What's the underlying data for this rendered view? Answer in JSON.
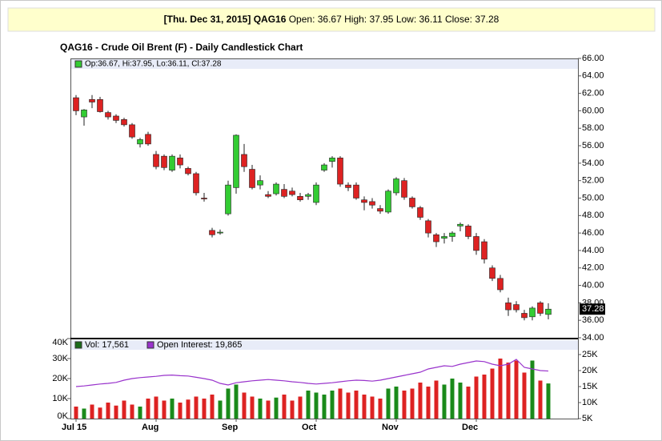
{
  "chart_data": [
    {
      "type": "candlestick",
      "header": {
        "date": "[Thu. Dec 31, 2015]",
        "symbol": "QAG16",
        "quote": "Open: 36.67 High: 37.95 Low: 36.11 Close: 37.28"
      },
      "title": "QAG16 - Crude Oil Brent (F) - Daily Candlestick Chart",
      "legend": "Op:36.67, Hi:37.95, Lo:36.11, Cl:37.28",
      "last_label": "37.28",
      "up_color": "#33cc33",
      "down_color": "#dd2222",
      "open": [
        61.5,
        59.3,
        61.3,
        61.3,
        59.8,
        59.4,
        59.0,
        58.4,
        56.2,
        57.3,
        55.0,
        54.8,
        53.2,
        54.6,
        53.4,
        52.8,
        50.0,
        46.3,
        46.0,
        48.2,
        51.2,
        55.0,
        53.3,
        51.5,
        50.4,
        50.5,
        51.0,
        50.8,
        50.2,
        50.2,
        49.5,
        53.2,
        54.2,
        54.6,
        51.5,
        51.5,
        49.8,
        49.6,
        48.8,
        48.4,
        50.6,
        52.0,
        50.0,
        48.9,
        47.4,
        45.8,
        45.4,
        45.6,
        46.8,
        46.8,
        45.6,
        45.0,
        42.0,
        40.8,
        38.0,
        37.8,
        36.8,
        36.4,
        38.0,
        36.67
      ],
      "high": [
        61.8,
        60.2,
        61.8,
        61.6,
        60.0,
        59.6,
        59.2,
        58.6,
        56.9,
        57.6,
        55.4,
        55.0,
        55.0,
        55.0,
        53.6,
        53.0,
        50.6,
        46.6,
        46.4,
        52.0,
        57.3,
        56.2,
        53.8,
        52.6,
        50.8,
        51.8,
        51.6,
        51.2,
        50.6,
        50.6,
        51.8,
        54.0,
        54.8,
        54.8,
        51.8,
        51.8,
        50.2,
        50.0,
        49.2,
        51.0,
        52.4,
        52.3,
        50.2,
        49.1,
        47.6,
        46.0,
        46.0,
        46.2,
        47.2,
        47.0,
        46.0,
        45.3,
        42.3,
        41.2,
        38.6,
        38.2,
        37.2,
        37.6,
        38.2,
        37.95
      ],
      "low": [
        59.5,
        58.3,
        60.3,
        59.8,
        59.0,
        58.6,
        58.2,
        56.8,
        55.8,
        56.0,
        53.3,
        53.2,
        53.0,
        53.4,
        52.6,
        50.3,
        49.6,
        45.5,
        45.8,
        48.0,
        50.5,
        53.0,
        51.0,
        51.0,
        50.0,
        50.3,
        50.0,
        50.2,
        49.6,
        49.8,
        49.2,
        53.0,
        53.5,
        51.3,
        50.8,
        49.8,
        48.6,
        48.8,
        48.2,
        48.2,
        50.3,
        49.8,
        48.8,
        47.5,
        45.5,
        44.4,
        44.8,
        45.0,
        46.2,
        45.3,
        43.5,
        42.5,
        40.5,
        39.2,
        36.5,
        36.9,
        36.0,
        36.0,
        36.5,
        36.11
      ],
      "close": [
        60.0,
        60.1,
        61.0,
        59.9,
        59.3,
        58.9,
        58.4,
        57.0,
        56.7,
        56.2,
        53.6,
        53.5,
        54.8,
        53.8,
        52.8,
        50.6,
        49.9,
        45.8,
        46.1,
        51.5,
        57.2,
        53.6,
        51.2,
        52.0,
        50.2,
        51.6,
        50.2,
        50.4,
        49.8,
        50.4,
        51.5,
        53.8,
        54.6,
        51.6,
        51.2,
        50.0,
        49.5,
        49.2,
        48.5,
        50.8,
        52.2,
        50.1,
        49.0,
        47.8,
        46.0,
        45.0,
        45.6,
        46.0,
        47.0,
        45.6,
        44.0,
        43.0,
        40.8,
        39.5,
        37.2,
        37.2,
        36.3,
        37.4,
        36.8,
        37.28
      ],
      "ylim": [
        34,
        66
      ],
      "yticks": [
        {
          "value": 34,
          "label": "34.00"
        },
        {
          "value": 36,
          "label": "36.00"
        },
        {
          "value": 38,
          "label": "38.00"
        },
        {
          "value": 40,
          "label": "40.00"
        },
        {
          "value": 42,
          "label": "42.00"
        },
        {
          "value": 44,
          "label": "44.00"
        },
        {
          "value": 46,
          "label": "46.00"
        },
        {
          "value": 48,
          "label": "48.00"
        },
        {
          "value": 50,
          "label": "50.00"
        },
        {
          "value": 52,
          "label": "52.00"
        },
        {
          "value": 54,
          "label": "54.00"
        },
        {
          "value": 56,
          "label": "56.00"
        },
        {
          "value": 58,
          "label": "58.00"
        },
        {
          "value": 60,
          "label": "60.00"
        },
        {
          "value": 62,
          "label": "62.00"
        },
        {
          "value": 64,
          "label": "64.00"
        },
        {
          "value": 66,
          "label": "66.00"
        }
      ]
    },
    {
      "type": "bar",
      "categories": [
        "Jul 15",
        null,
        null,
        null,
        null,
        null,
        null,
        null,
        null,
        null,
        "Aug",
        null,
        null,
        null,
        null,
        null,
        null,
        null,
        null,
        null,
        "Sep",
        null,
        null,
        null,
        null,
        null,
        null,
        null,
        null,
        null,
        "Oct",
        null,
        null,
        null,
        null,
        null,
        null,
        null,
        null,
        null,
        "Nov",
        null,
        null,
        null,
        null,
        null,
        null,
        null,
        null,
        null,
        "Dec",
        null,
        null,
        null,
        null,
        null,
        null,
        null,
        null,
        null
      ],
      "series": [
        {
          "name": "Vol: 17,561",
          "color": "#1a6b1a",
          "values": [
            6000,
            5000,
            7000,
            5500,
            8000,
            6500,
            9000,
            7000,
            6000,
            10000,
            11000,
            9000,
            10000,
            8000,
            9500,
            11000,
            10000,
            12000,
            9000,
            15000,
            17000,
            13000,
            11000,
            10000,
            9000,
            10500,
            12000,
            9000,
            11000,
            14000,
            13000,
            12000,
            14000,
            15000,
            13000,
            14000,
            12000,
            11000,
            10000,
            15000,
            16000,
            14000,
            15000,
            18000,
            16000,
            19000,
            17000,
            20000,
            18000,
            16000,
            21000,
            22000,
            25000,
            30000,
            28000,
            29000,
            23000,
            29000,
            19000,
            17561
          ]
        },
        {
          "name": "Open Interest: 19,865",
          "color": "#9933cc",
          "axis": "y2",
          "values": [
            15000,
            15200,
            15500,
            15800,
            16000,
            16300,
            17000,
            17500,
            17800,
            18000,
            18200,
            18500,
            18600,
            18400,
            18300,
            17900,
            17500,
            17000,
            16000,
            15500,
            16200,
            16500,
            16800,
            17000,
            17200,
            17000,
            16800,
            16500,
            16300,
            16000,
            15800,
            16000,
            16200,
            16500,
            16800,
            17000,
            16900,
            16700,
            17000,
            17500,
            18000,
            18500,
            19000,
            19500,
            20500,
            21000,
            21500,
            21300,
            22000,
            22500,
            23000,
            22800,
            22000,
            21500,
            22000,
            23500,
            21000,
            20500,
            20000,
            19865
          ]
        }
      ],
      "ylim": [
        0,
        40000
      ],
      "yticks": [
        {
          "value": 0,
          "label": "0K"
        },
        {
          "value": 10000,
          "label": "10K"
        },
        {
          "value": 20000,
          "label": "20K"
        },
        {
          "value": 30000,
          "label": "30K"
        },
        {
          "value": 40000,
          "label": "40K"
        }
      ],
      "y2lim": [
        5000,
        30000
      ],
      "y2ticks": [
        {
          "value": 5000,
          "label": "5K"
        },
        {
          "value": 10000,
          "label": "10K"
        },
        {
          "value": 15000,
          "label": "15K"
        },
        {
          "value": 20000,
          "label": "20K"
        },
        {
          "value": 25000,
          "label": "25K"
        }
      ]
    }
  ]
}
